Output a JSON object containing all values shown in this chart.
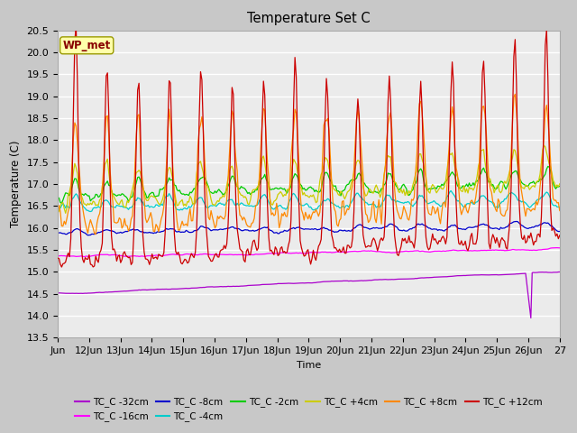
{
  "title": "Temperature Set C",
  "xlabel": "Time",
  "ylabel": "Temperature (C)",
  "ylim": [
    13.5,
    20.5
  ],
  "series_colors": {
    "TC_C -32cm": "#aa00cc",
    "TC_C -16cm": "#ff00ff",
    "TC_C -8cm": "#0000cc",
    "TC_C -4cm": "#00cccc",
    "TC_C -2cm": "#00cc00",
    "TC_C +4cm": "#cccc00",
    "TC_C +8cm": "#ff8800",
    "TC_C +12cm": "#cc0000"
  },
  "legend_order": [
    "TC_C -32cm",
    "TC_C -16cm",
    "TC_C -8cm",
    "TC_C -4cm",
    "TC_C -2cm",
    "TC_C +4cm",
    "TC_C +8cm",
    "TC_C +12cm"
  ],
  "xtick_labels": [
    "Jun",
    "12Jun",
    "13Jun",
    "14Jun",
    "15Jun",
    "16Jun",
    "17Jun",
    "18Jun",
    "19Jun",
    "20Jun",
    "21Jun",
    "22Jun",
    "23Jun",
    "24Jun",
    "25Jun",
    "26Jun",
    "27"
  ],
  "wp_met_box_color": "#ffffaa",
  "wp_met_text_color": "#880000",
  "plot_bg_color": "#ebebeb",
  "fig_bg_color": "#c8c8c8",
  "grid_color": "#ffffff"
}
